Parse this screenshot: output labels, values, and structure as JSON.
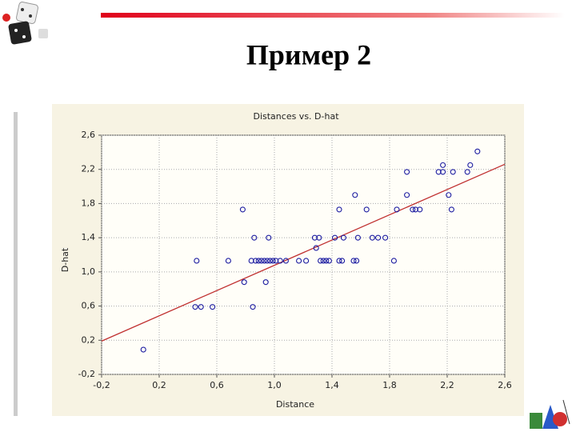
{
  "slide": {
    "title": "Пример 2"
  },
  "chart_data": {
    "type": "scatter",
    "title": "Distances vs. D-hat",
    "x_label": "Distance",
    "y_label": "D-hat",
    "xlim": [
      -0.2,
      2.6
    ],
    "ylim": [
      -0.2,
      2.6
    ],
    "xticks": [
      {
        "value": -0.2,
        "label": "-0,2"
      },
      {
        "value": 0.2,
        "label": "0,2"
      },
      {
        "value": 0.6,
        "label": "0,6"
      },
      {
        "value": 1.0,
        "label": "1,0"
      },
      {
        "value": 1.4,
        "label": "1,4"
      },
      {
        "value": 1.8,
        "label": "1,8"
      },
      {
        "value": 2.2,
        "label": "2,2"
      },
      {
        "value": 2.6,
        "label": "2,6"
      }
    ],
    "yticks": [
      {
        "value": -0.2,
        "label": "-0,2"
      },
      {
        "value": 0.2,
        "label": "0,2"
      },
      {
        "value": 0.6,
        "label": "0,6"
      },
      {
        "value": 1.0,
        "label": "1,0"
      },
      {
        "value": 1.4,
        "label": "1,4"
      },
      {
        "value": 1.8,
        "label": "1,8"
      },
      {
        "value": 2.2,
        "label": "2,2"
      },
      {
        "value": 2.6,
        "label": "2,6"
      }
    ],
    "grid": true,
    "color": "#1a1aa0",
    "x": [
      0.09,
      0.46,
      0.45,
      0.49,
      0.57,
      0.68,
      0.78,
      0.79,
      0.84,
      0.85,
      0.86,
      0.87,
      0.89,
      0.91,
      0.93,
      0.95,
      0.97,
      0.99,
      1.01,
      0.94,
      0.96,
      1.04,
      1.08,
      1.17,
      1.22,
      1.28,
      1.31,
      1.29,
      1.32,
      1.34,
      1.36,
      1.38,
      1.42,
      1.45,
      1.45,
      1.47,
      1.48,
      1.56,
      1.55,
      1.57,
      1.58,
      1.64,
      1.68,
      1.72,
      1.77,
      1.83,
      1.85,
      1.92,
      1.92,
      1.96,
      1.98,
      2.01,
      2.14,
      2.17,
      2.17,
      2.21,
      2.23,
      2.24,
      2.34,
      2.36,
      2.41
    ],
    "values": [
      0.09,
      1.13,
      0.59,
      0.59,
      0.59,
      1.13,
      1.73,
      0.88,
      1.13,
      0.59,
      1.4,
      1.13,
      1.13,
      1.13,
      1.13,
      1.13,
      1.13,
      1.13,
      1.13,
      0.88,
      1.4,
      1.13,
      1.13,
      1.13,
      1.13,
      1.4,
      1.4,
      1.28,
      1.13,
      1.13,
      1.13,
      1.13,
      1.4,
      1.73,
      1.13,
      1.13,
      1.4,
      1.9,
      1.13,
      1.13,
      1.4,
      1.73,
      1.4,
      1.4,
      1.4,
      1.13,
      1.73,
      1.9,
      2.17,
      1.73,
      1.73,
      1.73,
      2.17,
      2.17,
      2.25,
      1.9,
      1.73,
      2.17,
      2.17,
      2.25,
      2.41
    ],
    "trend_line": {
      "x": [
        -0.2,
        2.6
      ],
      "values": [
        0.19,
        2.26
      ],
      "color": "#c03030"
    }
  }
}
